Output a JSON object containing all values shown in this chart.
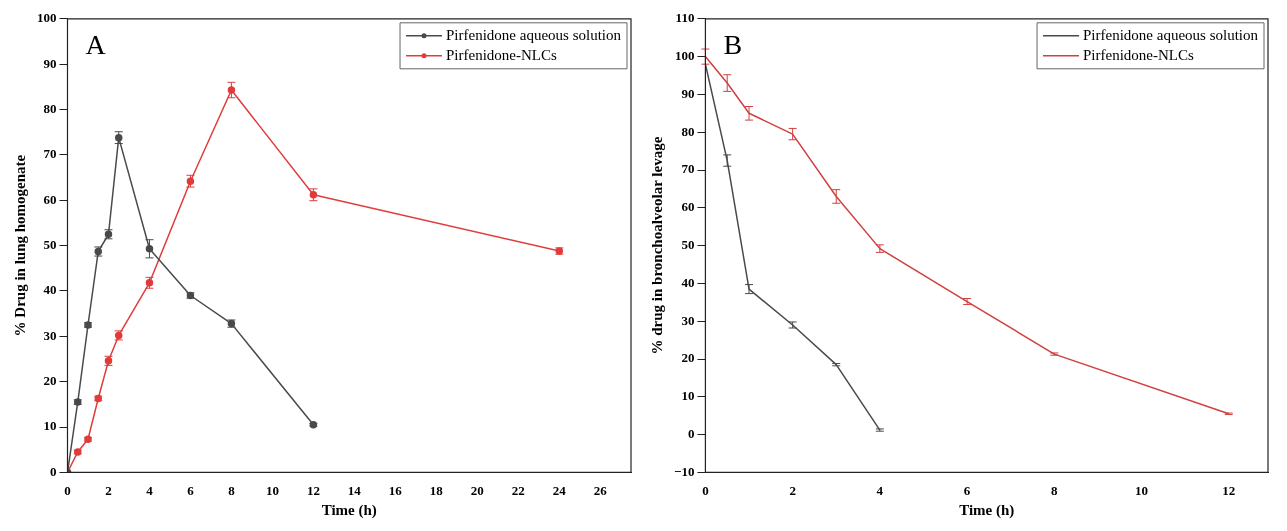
{
  "chart_data": [
    {
      "type": "line",
      "annotations": [
        "A"
      ],
      "xlabel": "Time (h)",
      "ylabel": "% Drug in lung homogenate",
      "xlim": [
        0,
        27.5
      ],
      "xticks": [
        0,
        2,
        4,
        6,
        8,
        10,
        12,
        14,
        16,
        18,
        20,
        22,
        24,
        26
      ],
      "ylim": [
        0,
        100
      ],
      "yticks": [
        0,
        10,
        20,
        30,
        40,
        50,
        60,
        70,
        80,
        90,
        100
      ],
      "legend": "top right",
      "marker": "circle",
      "line_style": "solid",
      "grid": false,
      "series": [
        {
          "name": "Pirfenidone aqueous solution",
          "color": "#4a4a4a",
          "x": [
            0,
            0.5,
            1,
            1.5,
            2,
            2.5,
            4,
            6,
            8,
            12
          ],
          "values": [
            0,
            15.5,
            32.5,
            48.7,
            52.5,
            73.8,
            49.3,
            39,
            32.8,
            10.5
          ],
          "errors": [
            null,
            0.5,
            0.5,
            1,
            1,
            1.3,
            2,
            0.6,
            0.8,
            0.3
          ]
        },
        {
          "name": "Pirfenidone-NLCs",
          "color": "#e03c3c",
          "x": [
            0,
            0.5,
            1,
            1.5,
            2,
            2.5,
            4,
            6,
            8,
            12,
            24
          ],
          "values": [
            0,
            4.5,
            7.3,
            16.3,
            24.6,
            30.2,
            41.8,
            64.2,
            84.3,
            61.2,
            48.8
          ],
          "errors": [
            null,
            0.4,
            0.4,
            0.5,
            1,
            1,
            1.2,
            1.3,
            1.7,
            1.3,
            0.7
          ]
        }
      ]
    },
    {
      "type": "line",
      "annotations": [
        "B"
      ],
      "xlabel": "Time (h)",
      "ylabel": "% drug in bronchoalveolar levage",
      "xlim": [
        0,
        12.9
      ],
      "xticks": [
        0,
        2,
        4,
        6,
        8,
        10,
        12
      ],
      "ylim": [
        -10,
        110
      ],
      "yticks": [
        -10,
        0,
        10,
        20,
        30,
        40,
        50,
        60,
        70,
        80,
        90,
        100,
        110
      ],
      "legend": "top right",
      "line_style": "solid",
      "grid": false,
      "series": [
        {
          "name": "Pirfenidone aqueous solution",
          "color": "#4a4a4a",
          "x": [
            0,
            0.5,
            1,
            2,
            3,
            4
          ],
          "values": [
            98,
            72.5,
            38.5,
            29,
            18.5,
            1.2
          ],
          "errors": [
            null,
            1.5,
            1.2,
            0.8,
            0.3,
            0.3
          ]
        },
        {
          "name": "Pirfenidone-NLCs",
          "color": "#d04040",
          "x": [
            0,
            0.5,
            1,
            2,
            3,
            4,
            6,
            8,
            12
          ],
          "values": [
            100,
            93,
            85,
            79.5,
            63,
            49.2,
            35.2,
            21.3,
            5.5
          ],
          "errors": [
            2,
            2.2,
            1.8,
            1.5,
            1.8,
            1,
            0.8,
            0.3,
            0.2
          ]
        }
      ]
    }
  ]
}
